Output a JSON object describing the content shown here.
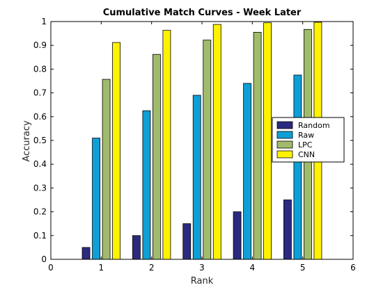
{
  "chart_data": {
    "type": "bar",
    "title": "Cumulative Match Curves - Week Later",
    "xlabel": "Rank",
    "ylabel": "Accuracy",
    "xlim": [
      0,
      6
    ],
    "ylim": [
      0,
      1
    ],
    "x": [
      1,
      2,
      3,
      4,
      5
    ],
    "xticks": [
      0,
      1,
      2,
      3,
      4,
      5,
      6
    ],
    "yticks": [
      0,
      0.1,
      0.2,
      0.3,
      0.4,
      0.5,
      0.6,
      0.7,
      0.8,
      0.9,
      1
    ],
    "grid": false,
    "legend_position": "right",
    "series": [
      {
        "name": "Random",
        "color": "#2b2a7e",
        "values": [
          0.05,
          0.1,
          0.15,
          0.2,
          0.25
        ]
      },
      {
        "name": "Raw",
        "color": "#0d9fd6",
        "values": [
          0.51,
          0.625,
          0.69,
          0.74,
          0.775
        ]
      },
      {
        "name": "LPC",
        "color": "#a1bb6c",
        "values": [
          0.757,
          0.862,
          0.922,
          0.955,
          0.967
        ]
      },
      {
        "name": "CNN",
        "color": "#fff200",
        "values": [
          0.912,
          0.963,
          0.988,
          0.995,
          0.997
        ]
      }
    ]
  }
}
